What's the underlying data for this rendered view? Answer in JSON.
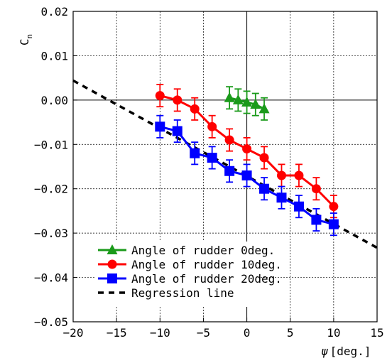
{
  "chart_data": {
    "type": "scatter",
    "xlabel_symbol": "ψ",
    "xlabel_unit": "[deg.]",
    "ylabel_main": "C",
    "ylabel_sub": "n",
    "xlim": [
      -20,
      15
    ],
    "ylim": [
      -0.05,
      0.02
    ],
    "x_ticks": [
      -20,
      -15,
      -10,
      -5,
      0,
      5,
      10,
      15
    ],
    "x_tick_labels": [
      "−20",
      "−15",
      "−10",
      "−5",
      "0",
      "5",
      "10",
      "15"
    ],
    "y_ticks": [
      0.02,
      0.01,
      0.0,
      -0.01,
      -0.02,
      -0.03,
      -0.04,
      -0.05
    ],
    "y_tick_labels": [
      "0.02",
      "0.01",
      "0.00",
      "−0.01",
      "−0.02",
      "−0.03",
      "−0.04",
      "−0.05"
    ],
    "grid": true,
    "legend_position": "bottom-left",
    "series": [
      {
        "name": "Angle of rudder  0deg.",
        "color": "#1a9a1a",
        "marker": "triangle",
        "x": [
          -2,
          -1,
          0,
          1,
          2
        ],
        "y": [
          0.0005,
          0.0,
          -0.0005,
          -0.001,
          -0.002
        ],
        "err": [
          0.0025,
          0.0025,
          0.0025,
          0.0025,
          0.0025
        ]
      },
      {
        "name": "Angle of rudder 10deg.",
        "color": "#ff0000",
        "marker": "circle",
        "x": [
          -10,
          -8,
          -6,
          -4,
          -2,
          0,
          2,
          4,
          6,
          8,
          10
        ],
        "y": [
          0.001,
          0.0,
          -0.002,
          -0.006,
          -0.009,
          -0.011,
          -0.013,
          -0.017,
          -0.017,
          -0.02,
          -0.024
        ],
        "err": [
          0.0025,
          0.0025,
          0.0025,
          0.0025,
          0.0025,
          0.0025,
          0.0025,
          0.0025,
          0.0025,
          0.0025,
          0.0025
        ]
      },
      {
        "name": "Angle of rudder 20deg.",
        "color": "#0000ff",
        "marker": "square",
        "x": [
          -10,
          -8,
          -6,
          -4,
          -2,
          0,
          2,
          4,
          6,
          8,
          10
        ],
        "y": [
          -0.006,
          -0.007,
          -0.012,
          -0.013,
          -0.016,
          -0.017,
          -0.02,
          -0.022,
          -0.024,
          -0.027,
          -0.028
        ],
        "err": [
          0.0025,
          0.0025,
          0.0025,
          0.0025,
          0.0025,
          0.0025,
          0.0025,
          0.0025,
          0.0025,
          0.0025,
          0.0025
        ]
      },
      {
        "name": "Regression line",
        "color": "#000000",
        "marker": "dashed-line",
        "x": [
          -20,
          15
        ],
        "y": [
          0.0044,
          -0.0333
        ]
      }
    ]
  }
}
